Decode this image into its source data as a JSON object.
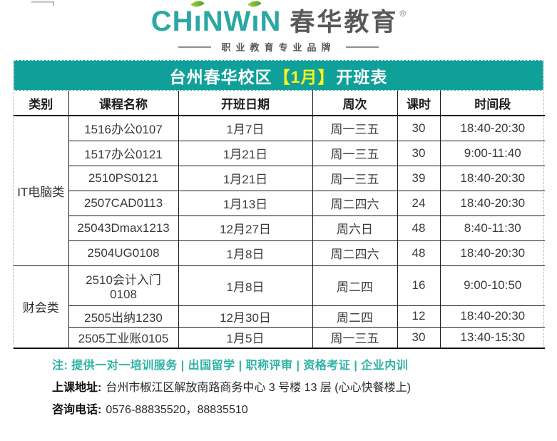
{
  "logo": {
    "en_segments": [
      "CH",
      "ı",
      "NW",
      "ı",
      "N"
    ],
    "brand_cn": "春华教育",
    "registered_mark": "®",
    "tagline": "职业教育专业品牌",
    "colors": {
      "logo_teal": "#2BA8A3",
      "leaf_green": "#6DBE3B",
      "brand_gray": "#595757"
    }
  },
  "title_bar": {
    "prefix": "台州春华校区",
    "highlight": "【1月】",
    "suffix": "开班表",
    "bg_color": "#10A09A",
    "highlight_color": "#FAF41C",
    "text_color": "#FFFFFF"
  },
  "table": {
    "headers": [
      "类别",
      "课程名称",
      "开班日期",
      "周次",
      "课时",
      "时间段"
    ],
    "groups": [
      {
        "category": "IT电脑类",
        "rows": [
          [
            "1516办公0107",
            "1月7日",
            "周一三五",
            "30",
            "18:40-20:30"
          ],
          [
            "1517办公0121",
            "1月21日",
            "周一三五",
            "30",
            "9:00-11:40"
          ],
          [
            "2510PS0121",
            "1月21日",
            "周一三五",
            "39",
            "18:40-20:30"
          ],
          [
            "2507CAD0113",
            "1月13日",
            "周二四六",
            "24",
            "18:40-20:30"
          ],
          [
            "25043Dmax1213",
            "12月27日",
            "周六日",
            "48",
            "8:40-11:30"
          ],
          [
            "2504UG0108",
            "1月8日",
            "周二四六",
            "48",
            "18:40-20:30"
          ]
        ]
      },
      {
        "category": "财会类",
        "rows": [
          [
            "2510会计入门\n0108",
            "1月8日",
            "周二四",
            "16",
            "9:00-10:50"
          ],
          [
            "2505出纳1230",
            "12月30日",
            "周二四",
            "12",
            "18:40-20:30"
          ],
          [
            "2505工业账0105",
            "1月5日",
            "周一三五",
            "30",
            "13:40-15:30"
          ]
        ]
      }
    ]
  },
  "footer": {
    "note": "注: 提供一对一培训服务 | 出国留学 | 职称评审 | 资格考证 | 企业内训",
    "note_color": "#2CB3A6",
    "address_label": "上课地址:",
    "address": "台州市椒江区解放南路商务中心 3 号楼 13 层 (心心快餐楼上)",
    "phone_label": "咨询电话:",
    "phone": "0576-88835520，88835510"
  }
}
